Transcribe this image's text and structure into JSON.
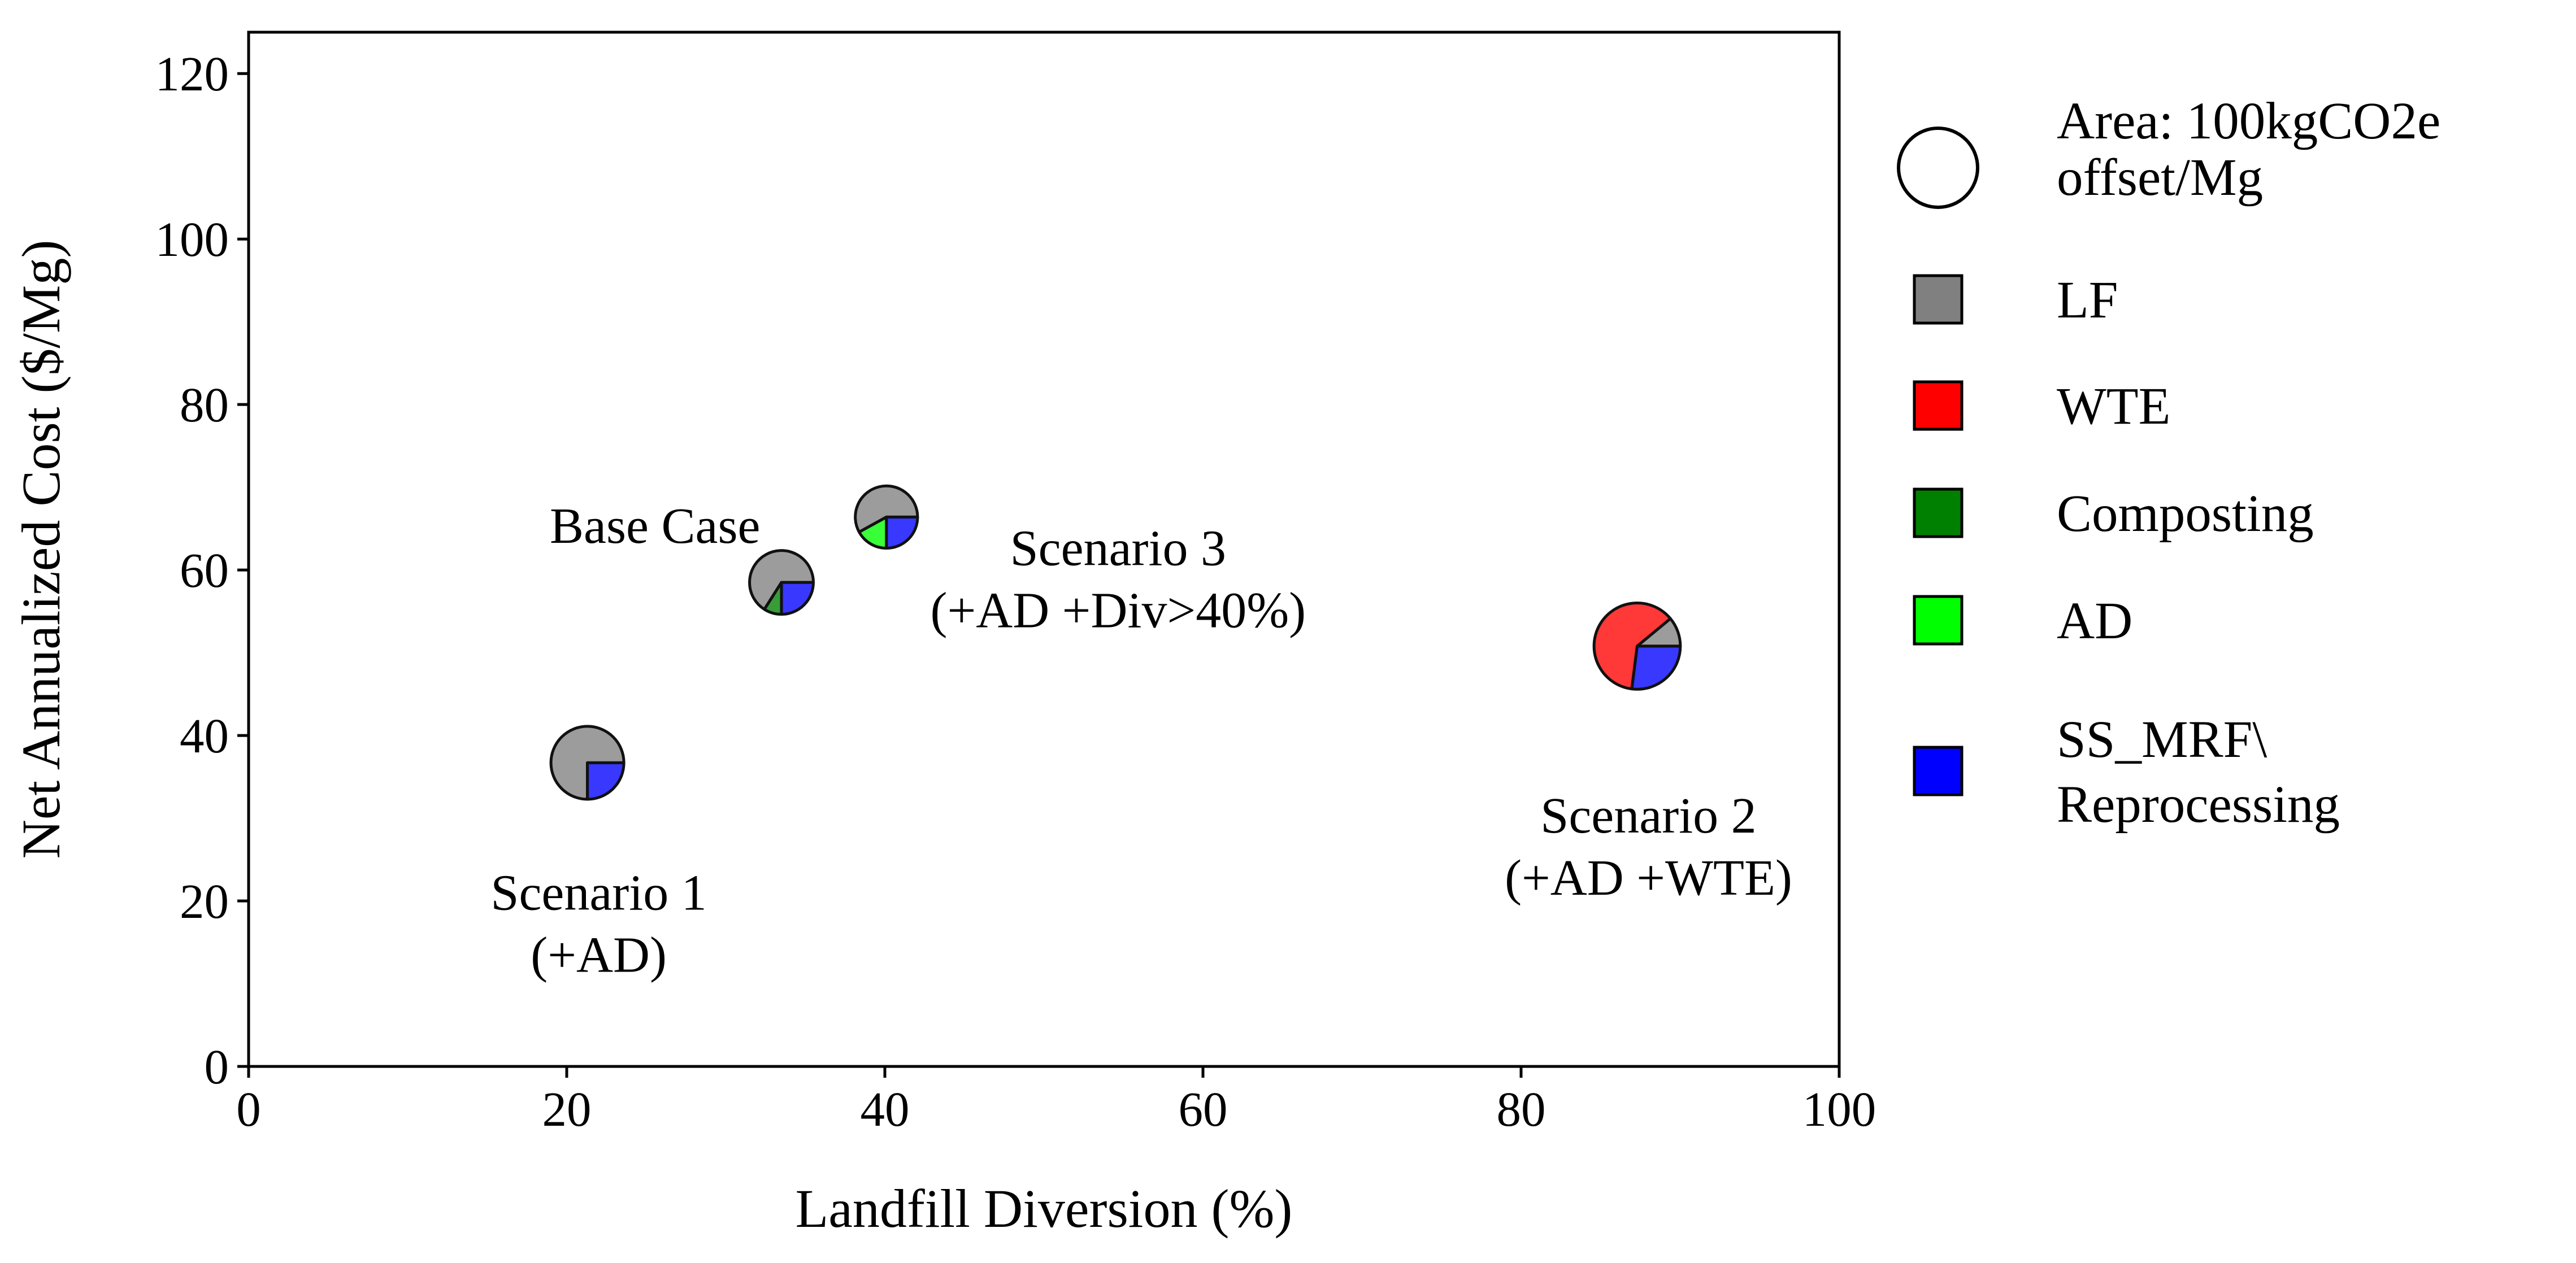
{
  "chart_data": {
    "type": "scatter",
    "title": "",
    "xlabel": "Landfill Diversion (%)",
    "ylabel": "Net Annualized Cost ($/Mg)",
    "xlim": [
      0,
      100
    ],
    "ylim": [
      0,
      125
    ],
    "xticks": [
      0,
      20,
      40,
      60,
      80,
      100
    ],
    "yticks": [
      0,
      20,
      40,
      60,
      80,
      100,
      120
    ],
    "grid": false,
    "legend_position": "right-outside",
    "categories": [
      {
        "name": "LF",
        "color": "#808080"
      },
      {
        "name": "WTE",
        "color": "#ff0000"
      },
      {
        "name": "Composting",
        "color": "#008000"
      },
      {
        "name": "AD",
        "color": "#00ff00"
      },
      {
        "name": "SS_MRF\\ Reprocessing",
        "name_lines": [
          "SS_MRF\\",
          "Reprocessing"
        ],
        "color": "#0000ff"
      }
    ],
    "size_legend": {
      "label_lines": [
        "Area: 100kgCO2e",
        "offset/Mg"
      ],
      "value": 100,
      "unit": "kgCO2e offset/Mg"
    },
    "points": [
      {
        "label_lines": [
          "Scenario 1",
          "(+AD)"
        ],
        "x": 21.3,
        "y": 36.7,
        "offset_kgCO2e_per_Mg": 85,
        "shares": {
          "LF": 0.75,
          "SS_MRF\\ Reprocessing": 0.25
        }
      },
      {
        "label_lines": [
          "Base Case"
        ],
        "x": 33.5,
        "y": 58.5,
        "offset_kgCO2e_per_Mg": 65,
        "shares": {
          "LF": 0.66,
          "Composting": 0.09,
          "SS_MRF\\ Reprocessing": 0.25
        }
      },
      {
        "label_lines": [
          "Scenario 3",
          "(+AD +Div>40%)"
        ],
        "x": 40.1,
        "y": 66.4,
        "offset_kgCO2e_per_Mg": 62,
        "shares": {
          "LF": 0.58,
          "AD": 0.17,
          "SS_MRF\\ Reprocessing": 0.25
        }
      },
      {
        "label_lines": [
          "Scenario 2",
          "(+AD +WTE)"
        ],
        "x": 87.3,
        "y": 50.8,
        "offset_kgCO2e_per_Mg": 119,
        "shares": {
          "LF": 0.11,
          "WTE": 0.62,
          "SS_MRF\\ Reprocessing": 0.27
        }
      }
    ]
  }
}
